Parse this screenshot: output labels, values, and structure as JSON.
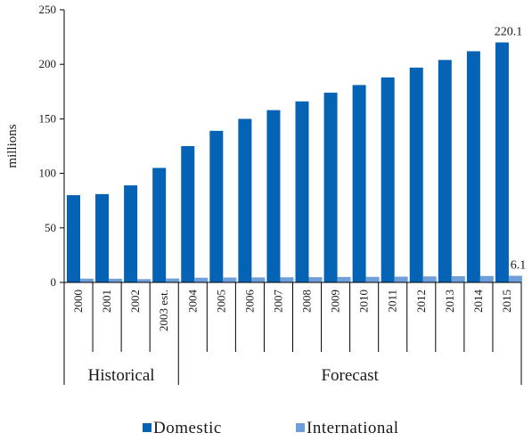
{
  "chart_data": {
    "type": "bar",
    "ylabel": "millions",
    "ylim": [
      0,
      250
    ],
    "yticks": [
      0,
      50,
      100,
      150,
      200,
      250
    ],
    "grid": false,
    "legend_position": "bottom",
    "categories": [
      "2000",
      "2001",
      "2002",
      "2003 est.",
      "2004",
      "2005",
      "2006",
      "2007",
      "2008",
      "2009",
      "2010",
      "2011",
      "2012",
      "2013",
      "2014",
      "2015"
    ],
    "groups": [
      {
        "label": "Historical",
        "start": 0,
        "end": 3
      },
      {
        "label": "Forecast",
        "start": 4,
        "end": 15
      }
    ],
    "series": [
      {
        "name": "Domestic",
        "color": "#0563b6",
        "values": [
          80,
          81,
          89,
          105,
          125,
          139,
          150,
          158,
          166,
          174,
          181,
          188,
          197,
          204,
          212,
          220.1
        ]
      },
      {
        "name": "International",
        "color": "#6f9fd9",
        "values": [
          3.5,
          3.4,
          3.0,
          3.6,
          4.3,
          4.5,
          4.6,
          4.7,
          4.8,
          5.0,
          5.1,
          5.3,
          5.5,
          5.7,
          5.9,
          6.1
        ]
      }
    ],
    "data_labels": [
      {
        "series": 0,
        "index": 15,
        "text": "220.1"
      },
      {
        "series": 1,
        "index": 15,
        "text": "6.1"
      }
    ]
  }
}
